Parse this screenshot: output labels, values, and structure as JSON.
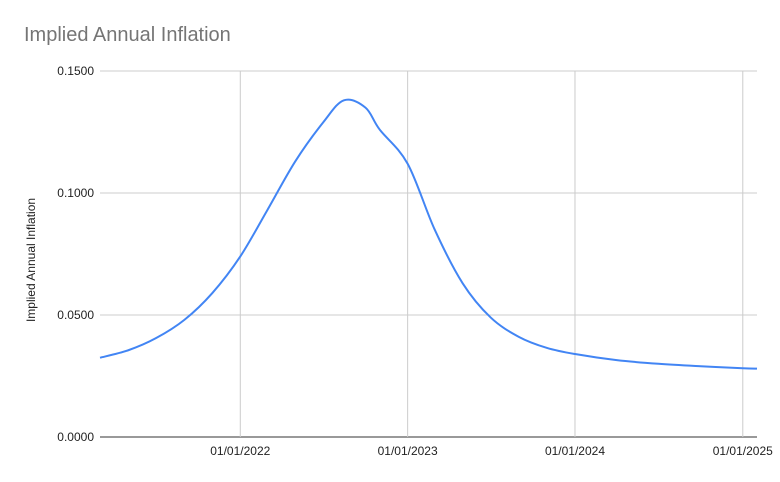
{
  "chart_data": {
    "type": "line",
    "title": "Implied Annual Inflation",
    "xlabel": "",
    "ylabel": "Implied Annual Inflation",
    "xlim": [
      "2021-03-01",
      "2025-02-01"
    ],
    "ylim": [
      0,
      0.15
    ],
    "y_ticks": [
      "0.0000",
      "0.0500",
      "0.1000",
      "0.1500"
    ],
    "x_ticks": [
      "01/01/2022",
      "01/01/2023",
      "01/01/2024",
      "01/01/2025"
    ],
    "grid": true,
    "series": [
      {
        "color": "#4285f4",
        "x": [
          "2021-03-01",
          "2021-05-01",
          "2021-07-01",
          "2021-09-01",
          "2021-11-01",
          "2022-01-01",
          "2022-03-01",
          "2022-05-01",
          "2022-07-01",
          "2022-08-15",
          "2022-10-01",
          "2022-11-01",
          "2023-01-01",
          "2023-03-01",
          "2023-05-01",
          "2023-07-01",
          "2023-09-01",
          "2023-11-01",
          "2024-01-01",
          "2024-04-01",
          "2024-07-01",
          "2024-10-01",
          "2025-01-01",
          "2025-02-01"
        ],
        "y": [
          0.0325,
          0.0355,
          0.0405,
          0.048,
          0.059,
          0.074,
          0.093,
          0.113,
          0.129,
          0.138,
          0.135,
          0.126,
          0.112,
          0.085,
          0.063,
          0.049,
          0.041,
          0.0365,
          0.034,
          0.0315,
          0.03,
          0.029,
          0.0282,
          0.028
        ]
      }
    ]
  }
}
